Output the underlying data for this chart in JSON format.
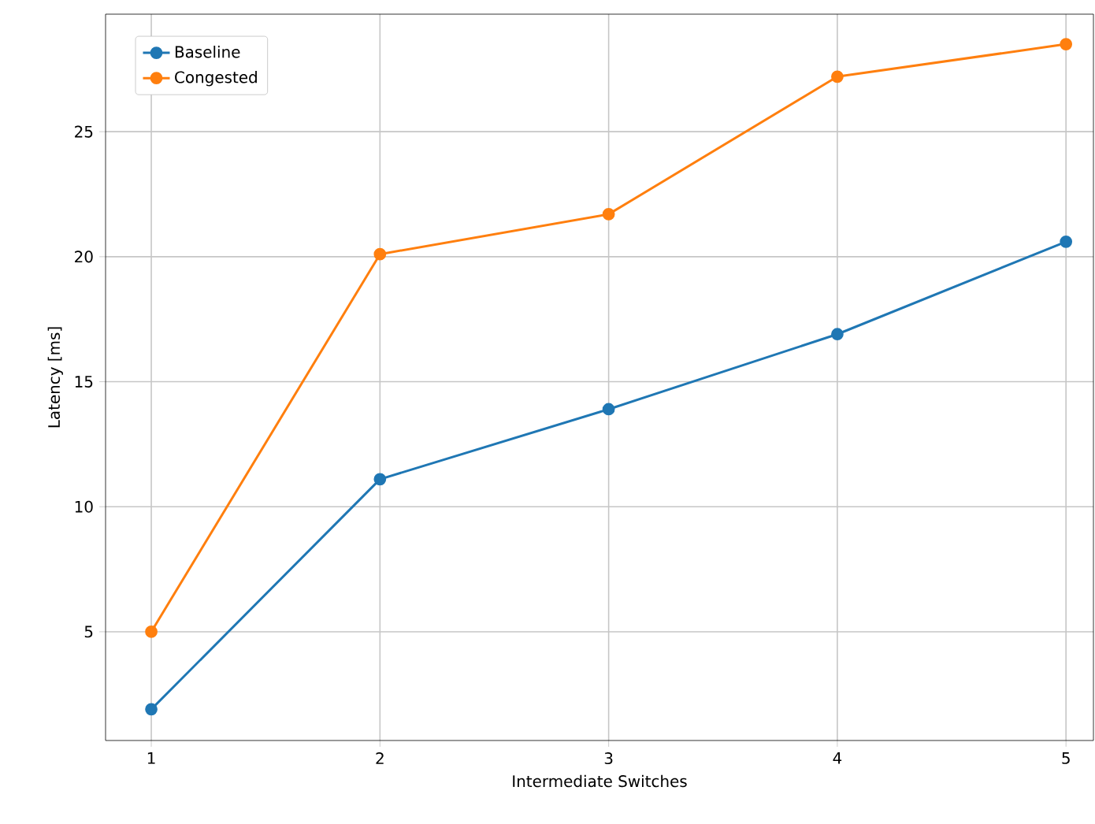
{
  "chart_data": {
    "type": "line",
    "xlabel": "Intermediate Switches",
    "ylabel": "Latency [ms]",
    "x": [
      1,
      2,
      3,
      4,
      5
    ],
    "series": [
      {
        "name": "Baseline",
        "color": "#1f77b4",
        "values": [
          1.9,
          11.1,
          13.9,
          16.9,
          20.6
        ]
      },
      {
        "name": "Congested",
        "color": "#ff7f0e",
        "values": [
          5.0,
          20.1,
          21.7,
          27.2,
          28.5
        ]
      }
    ],
    "xlim": [
      0.8,
      5.12
    ],
    "ylim": [
      0.65,
      29.7
    ],
    "xticks": [
      1,
      2,
      3,
      4,
      5
    ],
    "yticks": [
      5,
      10,
      15,
      20,
      25
    ],
    "grid": true,
    "legend": "top left",
    "marker": "circle",
    "line_style": "solid"
  }
}
